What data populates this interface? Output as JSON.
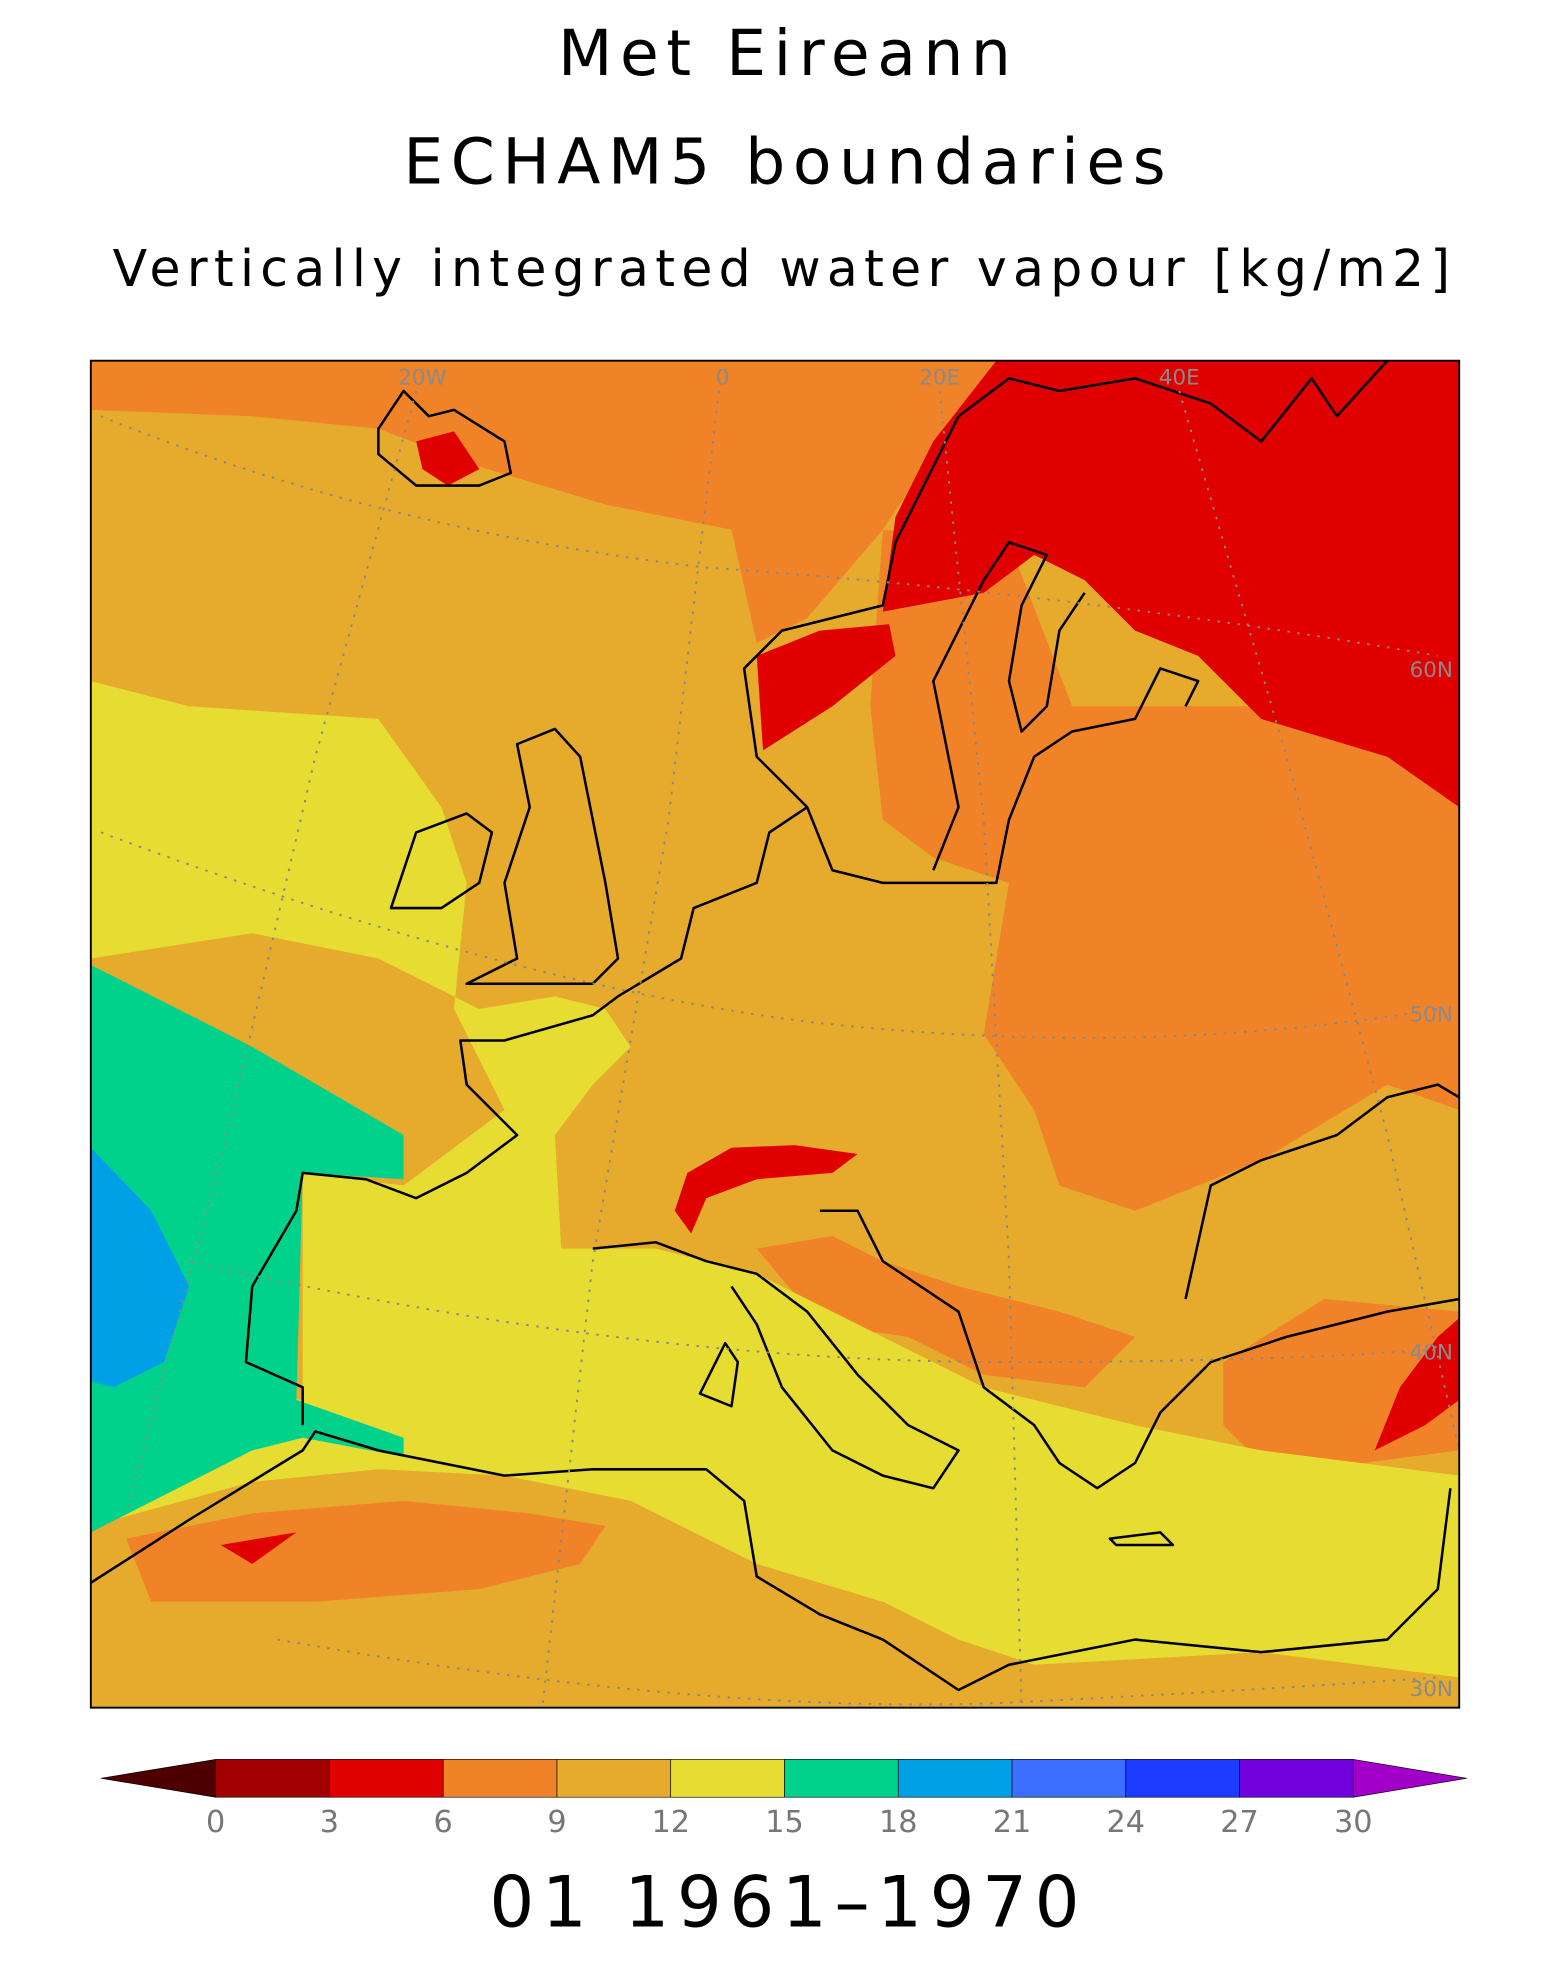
{
  "header": {
    "title": "Met Eireann",
    "subtitle": "ECHAM5 boundaries",
    "variable": "Vertically integrated water vapour [kg/m2]"
  },
  "map": {
    "grid_labels": {
      "lon": [
        "20W",
        "0",
        "20E",
        "40E"
      ],
      "lat": [
        "60N",
        "50N",
        "40N",
        "30N"
      ]
    },
    "colorbar": {
      "ticks": [
        0,
        3,
        6,
        9,
        12,
        15,
        18,
        21,
        24,
        27,
        30
      ],
      "colors": [
        "#4e0000",
        "#a00000",
        "#e00000",
        "#f08228",
        "#e6aa2d",
        "#e6dc32",
        "#00d28c",
        "#00a0e6",
        "#3c6eff",
        "#1e3cff",
        "#7000dc",
        "#a000c8"
      ]
    }
  },
  "footer": {
    "period": "01 1961–1970"
  }
}
